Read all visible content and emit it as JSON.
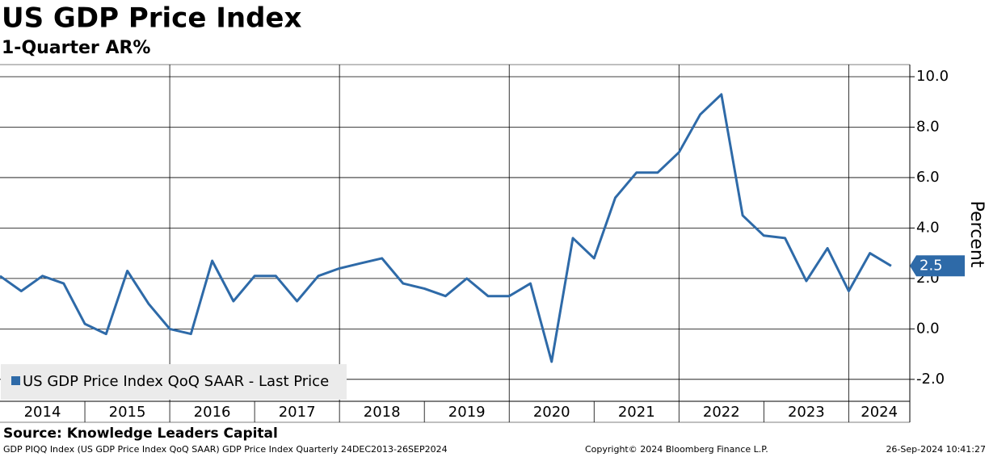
{
  "chart_data": {
    "type": "line",
    "title": "US GDP Price Index",
    "subtitle": "1-Quarter AR%",
    "y_label": "Percent",
    "source": "Source: Knowledge Leaders Capital",
    "footer_left": "GDP PIQQ Index (US GDP Price Index QoQ SAAR) GDP Price Index  Quarterly 24DEC2013-26SEP2024",
    "footer_center": "Copyright© 2024 Bloomberg Finance L.P.",
    "footer_right": "26-Sep-2024 10:41:27",
    "x": [
      2014,
      2014.25,
      2014.5,
      2014.75,
      2015,
      2015.25,
      2015.5,
      2015.75,
      2016,
      2016.25,
      2016.5,
      2016.75,
      2017,
      2017.25,
      2017.5,
      2017.75,
      2018,
      2018.25,
      2018.5,
      2018.75,
      2019,
      2019.25,
      2019.5,
      2019.75,
      2020,
      2020.25,
      2020.5,
      2020.75,
      2021,
      2021.25,
      2021.5,
      2021.75,
      2022,
      2022.25,
      2022.5,
      2022.75,
      2023,
      2023.25,
      2023.5,
      2023.75,
      2024,
      2024.25,
      2024.5
    ],
    "series": [
      {
        "name": "US GDP Price Index QoQ SAAR - Last Price",
        "color": "#2e6aa8",
        "values": [
          2.1,
          1.5,
          2.1,
          1.8,
          0.2,
          -0.2,
          2.3,
          1.0,
          0.0,
          -0.2,
          2.7,
          1.1,
          2.1,
          2.1,
          1.1,
          2.1,
          2.4,
          2.6,
          2.8,
          1.8,
          1.6,
          1.3,
          2.0,
          1.3,
          1.3,
          1.8,
          -1.3,
          3.6,
          2.8,
          5.2,
          6.2,
          6.2,
          7.0,
          8.5,
          9.3,
          4.5,
          3.7,
          3.6,
          1.9,
          3.2,
          1.5,
          3.0,
          2.5
        ]
      }
    ],
    "last_value_label": "2.5",
    "xlim": [
      2014,
      2024.72
    ],
    "xticks": [
      {
        "value": 2014.5,
        "label": "2014"
      },
      {
        "value": 2015.5,
        "label": "2015"
      },
      {
        "value": 2016.5,
        "label": "2016"
      },
      {
        "value": 2017.5,
        "label": "2017"
      },
      {
        "value": 2018.5,
        "label": "2018"
      },
      {
        "value": 2019.5,
        "label": "2019"
      },
      {
        "value": 2020.5,
        "label": "2020"
      },
      {
        "value": 2021.5,
        "label": "2021"
      },
      {
        "value": 2022.5,
        "label": "2022"
      },
      {
        "value": 2023.5,
        "label": "2023"
      },
      {
        "value": 2024.36,
        "label": "2024"
      }
    ],
    "ylim": [
      -2.87,
      10.48
    ],
    "yticks": [
      {
        "value": -2,
        "label": "-2.0"
      },
      {
        "value": 0,
        "label": "0.0"
      },
      {
        "value": 2,
        "label": "2.0"
      },
      {
        "value": 4,
        "label": "4.0"
      },
      {
        "value": 6,
        "label": "6.0"
      },
      {
        "value": 8,
        "label": "8.0"
      },
      {
        "value": 10,
        "label": "10.0"
      }
    ],
    "grid": true,
    "legend": "lower left"
  }
}
